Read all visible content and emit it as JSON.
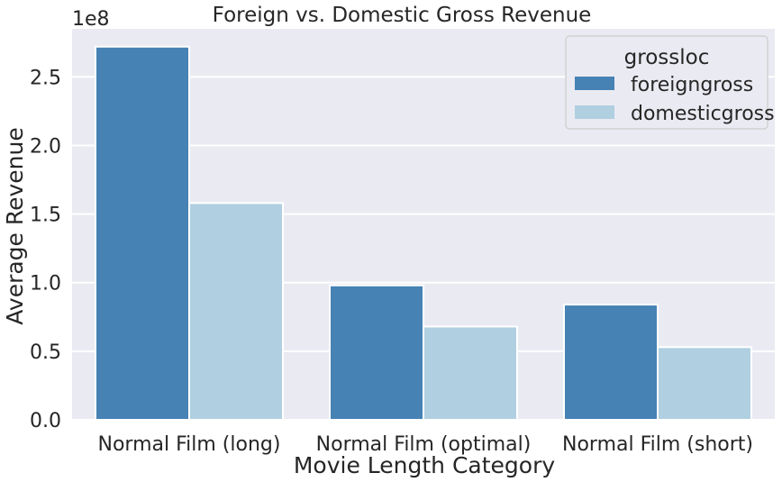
{
  "chart_data": {
    "type": "bar",
    "title": "Foreign vs. Domestic Gross Revenue",
    "xlabel": "Movie Length Category",
    "ylabel": "Average Revenue",
    "y_offset_label": "1e8",
    "categories": [
      "Normal Film (long)",
      "Normal Film (optimal)",
      "Normal Film (short)"
    ],
    "series": [
      {
        "name": "foreigngross",
        "color": "#4682b4",
        "values": [
          2.72,
          0.98,
          0.84
        ]
      },
      {
        "name": "domesticgross",
        "color": "#b0cfe1",
        "values": [
          1.58,
          0.68,
          0.53
        ]
      }
    ],
    "ylim": [
      0,
      2.85
    ],
    "yticks": [
      0.0,
      0.5,
      1.0,
      1.5,
      2.0,
      2.5
    ],
    "ytick_labels": [
      "0.0",
      "0.5",
      "1.0",
      "1.5",
      "2.0",
      "2.5"
    ],
    "grid": true,
    "legend": {
      "title": "grossloc",
      "placement": "top-right"
    },
    "background_color": "#eaeaf2"
  }
}
